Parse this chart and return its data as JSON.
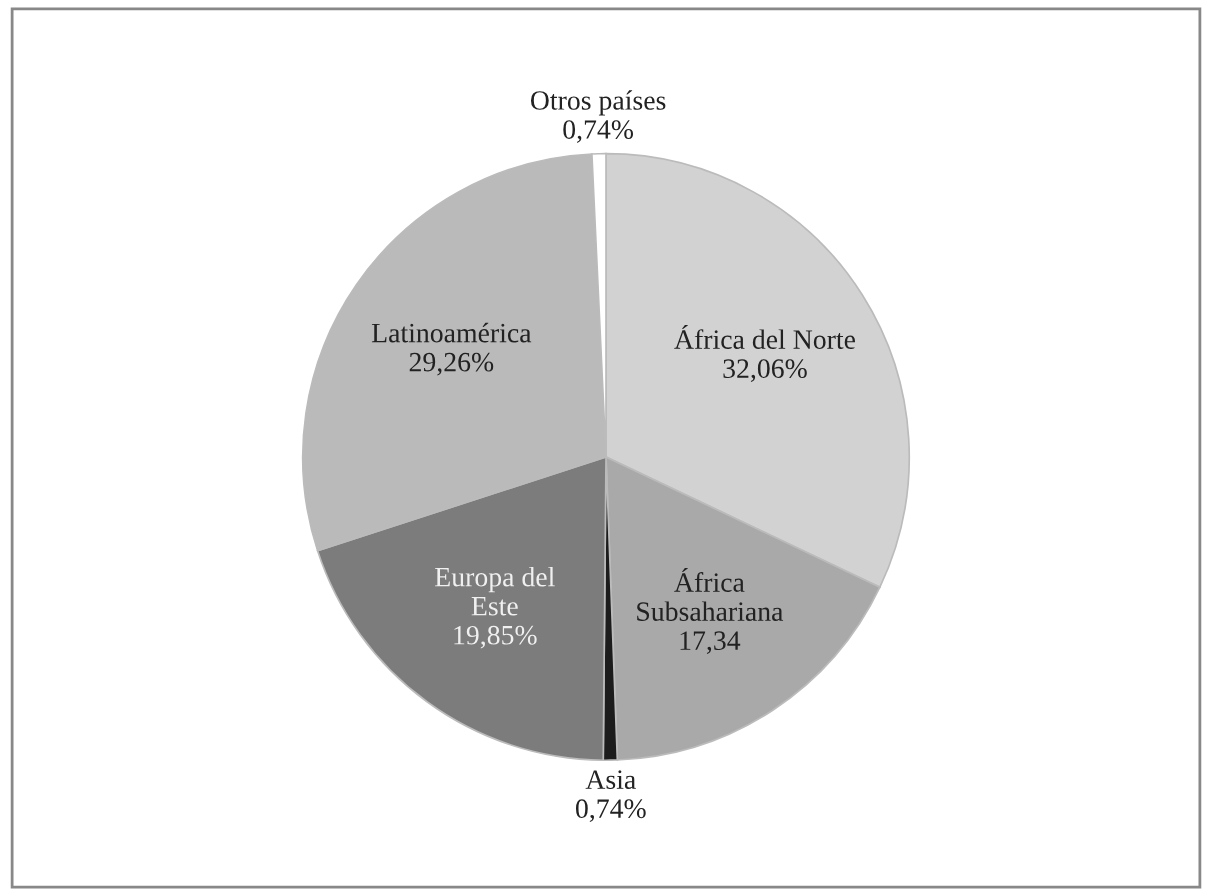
{
  "chart_data": {
    "type": "pie",
    "categories": [
      "África del Norte",
      "África\nSubsahariana",
      "Asia",
      "Europa del\nEste",
      "Latinoamérica",
      "Otros países"
    ],
    "values": [
      32.06,
      17.34,
      0.74,
      19.85,
      29.26,
      0.74
    ],
    "value_labels": [
      "32,06%",
      "17,34",
      "0,74%",
      "19,85%",
      "29,26%",
      "0,74%"
    ],
    "colors": [
      "#d2d2d2",
      "#a9a9a9",
      "#1c1c1c",
      "#7c7c7c",
      "#bababa",
      "#ffffff"
    ],
    "legend": false
  }
}
